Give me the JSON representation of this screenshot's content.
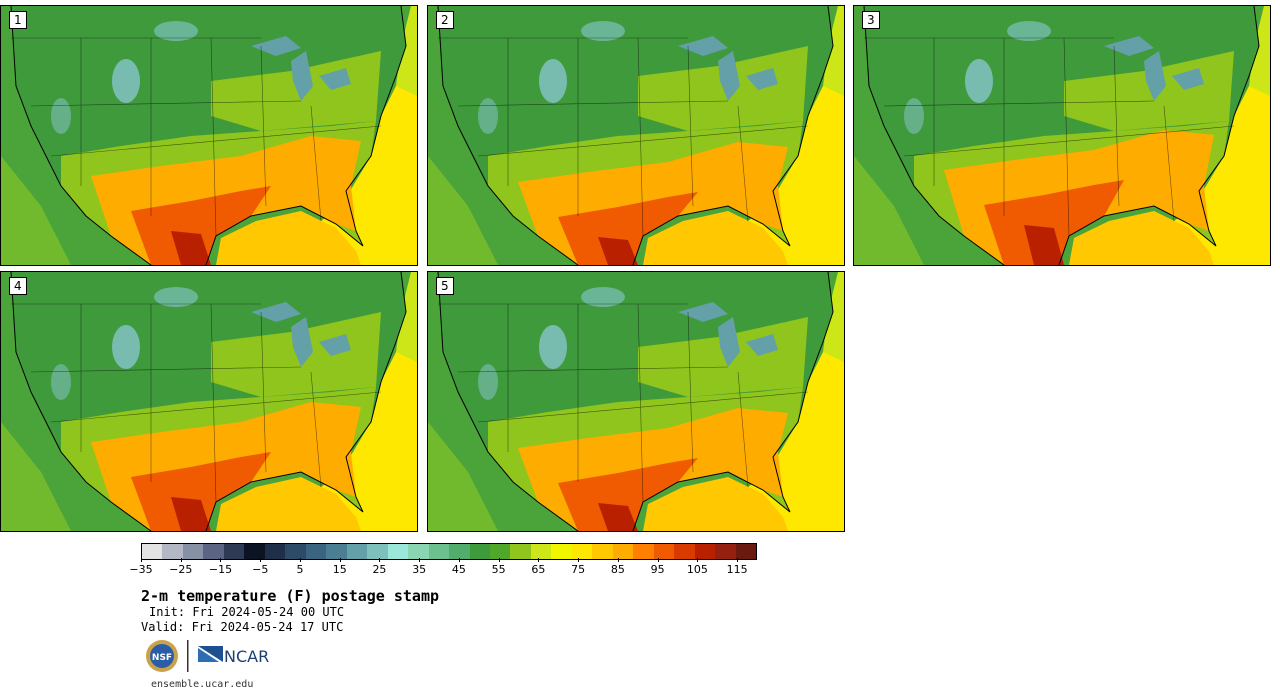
{
  "panels": [
    {
      "label": "1",
      "variant": 1
    },
    {
      "label": "2",
      "variant": 2
    },
    {
      "label": "3",
      "variant": 3
    },
    {
      "label": "4",
      "variant": 4
    },
    {
      "label": "5",
      "variant": 5
    }
  ],
  "colorbar": {
    "colors": [
      "#e3e3e3",
      "#b4b8c4",
      "#8791a6",
      "#5b6583",
      "#2e3954",
      "#0c1322",
      "#1f2f48",
      "#2d4a67",
      "#3a6480",
      "#4c7e93",
      "#64a0a8",
      "#7ec0bc",
      "#9be8db",
      "#8bd6b2",
      "#6cc08e",
      "#52ad6d",
      "#3f9a3c",
      "#4fa82a",
      "#8fc51c",
      "#cce617",
      "#f0f500",
      "#ffe800",
      "#ffc800",
      "#ffac00",
      "#ff8000",
      "#f05a00",
      "#d83a00",
      "#b82000",
      "#952010",
      "#6a1a0e"
    ],
    "tick_labels": [
      "−35",
      "−25",
      "−15",
      "−5",
      "5",
      "15",
      "25",
      "35",
      "45",
      "55",
      "65",
      "75",
      "85",
      "95",
      "105",
      "115"
    ],
    "tick_values": [
      -35,
      -25,
      -15,
      -5,
      5,
      15,
      25,
      35,
      45,
      55,
      65,
      75,
      85,
      95,
      105,
      115
    ],
    "min": -35,
    "max": 120
  },
  "title": "2-m temperature (F) postage stamp",
  "init_text": "Init: Fri 2024-05-24 00 UTC",
  "valid_text": "Valid: Fri 2024-05-24 17 UTC",
  "url_text": "ensemble.ucar.edu",
  "logos": {
    "nsf": "NSF",
    "ncar": "NCAR"
  },
  "map_colors": {
    "ocean_west": "#4aa43a",
    "pacific_warm": "#7cbf2a",
    "atlantic_south": "#ffe800",
    "atlantic_north": "#cce617",
    "gulf": "#ffc800",
    "land_cool": "#3f9a3c",
    "land_mid": "#8fc51c",
    "land_warm": "#ffac00",
    "land_hot": "#f05a00",
    "land_hottest": "#b82000",
    "mountains": "#7ec0bc",
    "lakes": "#64a0a8"
  }
}
